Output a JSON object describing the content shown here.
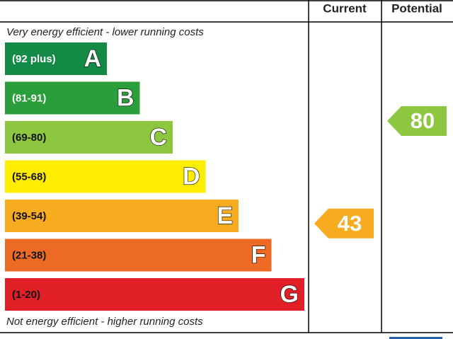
{
  "header": {
    "current": "Current",
    "potential": "Potential"
  },
  "top_note": "Very energy efficient - lower running costs",
  "bottom_note": "Not energy efficient - higher running costs",
  "bands": [
    {
      "range": "(92 plus)",
      "letter": "A",
      "color": "#138a45"
    },
    {
      "range": "(81-91)",
      "letter": "B",
      "color": "#2a9e3a"
    },
    {
      "range": "(69-80)",
      "letter": "C",
      "color": "#8dc63f"
    },
    {
      "range": "(55-68)",
      "letter": "D",
      "color": "#ffed00"
    },
    {
      "range": "(39-54)",
      "letter": "E",
      "color": "#f7ac20"
    },
    {
      "range": "(21-38)",
      "letter": "F",
      "color": "#ec6a23"
    },
    {
      "range": "(1-20)",
      "letter": "G",
      "color": "#e01f26"
    }
  ],
  "current": {
    "value": 43,
    "color": "#f7ac20"
  },
  "potential": {
    "value": 80,
    "color": "#8dc63f"
  }
}
